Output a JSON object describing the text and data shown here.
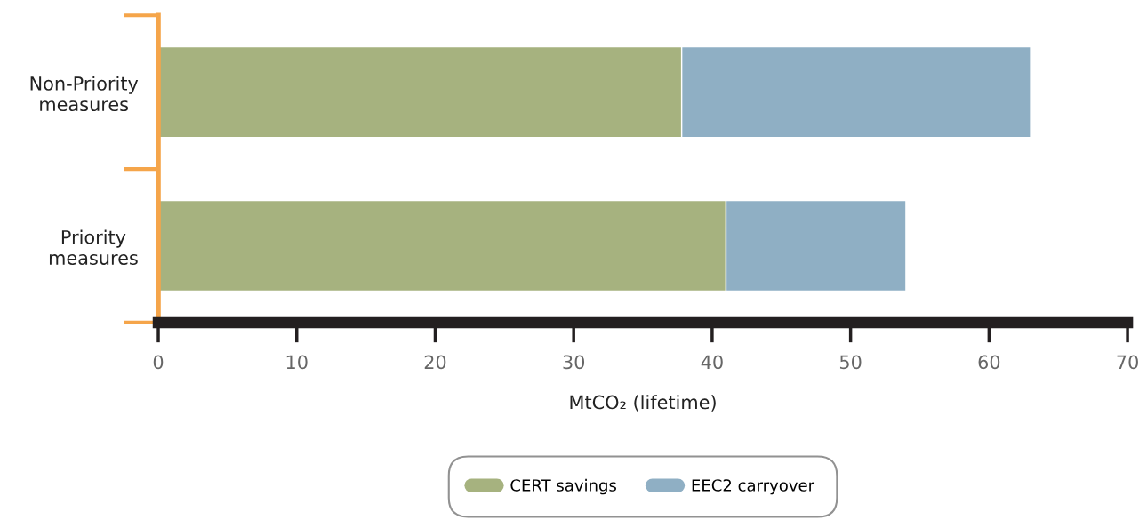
{
  "chart_data": {
    "type": "bar",
    "orientation": "horizontal",
    "stacked": true,
    "categories": [
      "Non-Priority\nmeasures",
      "Priority\nmeasures"
    ],
    "series": [
      {
        "name": "CERT savings",
        "color": "#a6b27f",
        "values": [
          37.8,
          41
        ]
      },
      {
        "name": "EEC2 carryover",
        "color": "#8fafc4",
        "values": [
          25.2,
          13
        ]
      }
    ],
    "xlabel": "MtCO₂ (lifetime)",
    "xlim": [
      0,
      70
    ],
    "xticks": [
      0,
      10,
      20,
      30,
      40,
      50,
      60,
      70
    ],
    "legend": "bottom",
    "grid": false
  }
}
